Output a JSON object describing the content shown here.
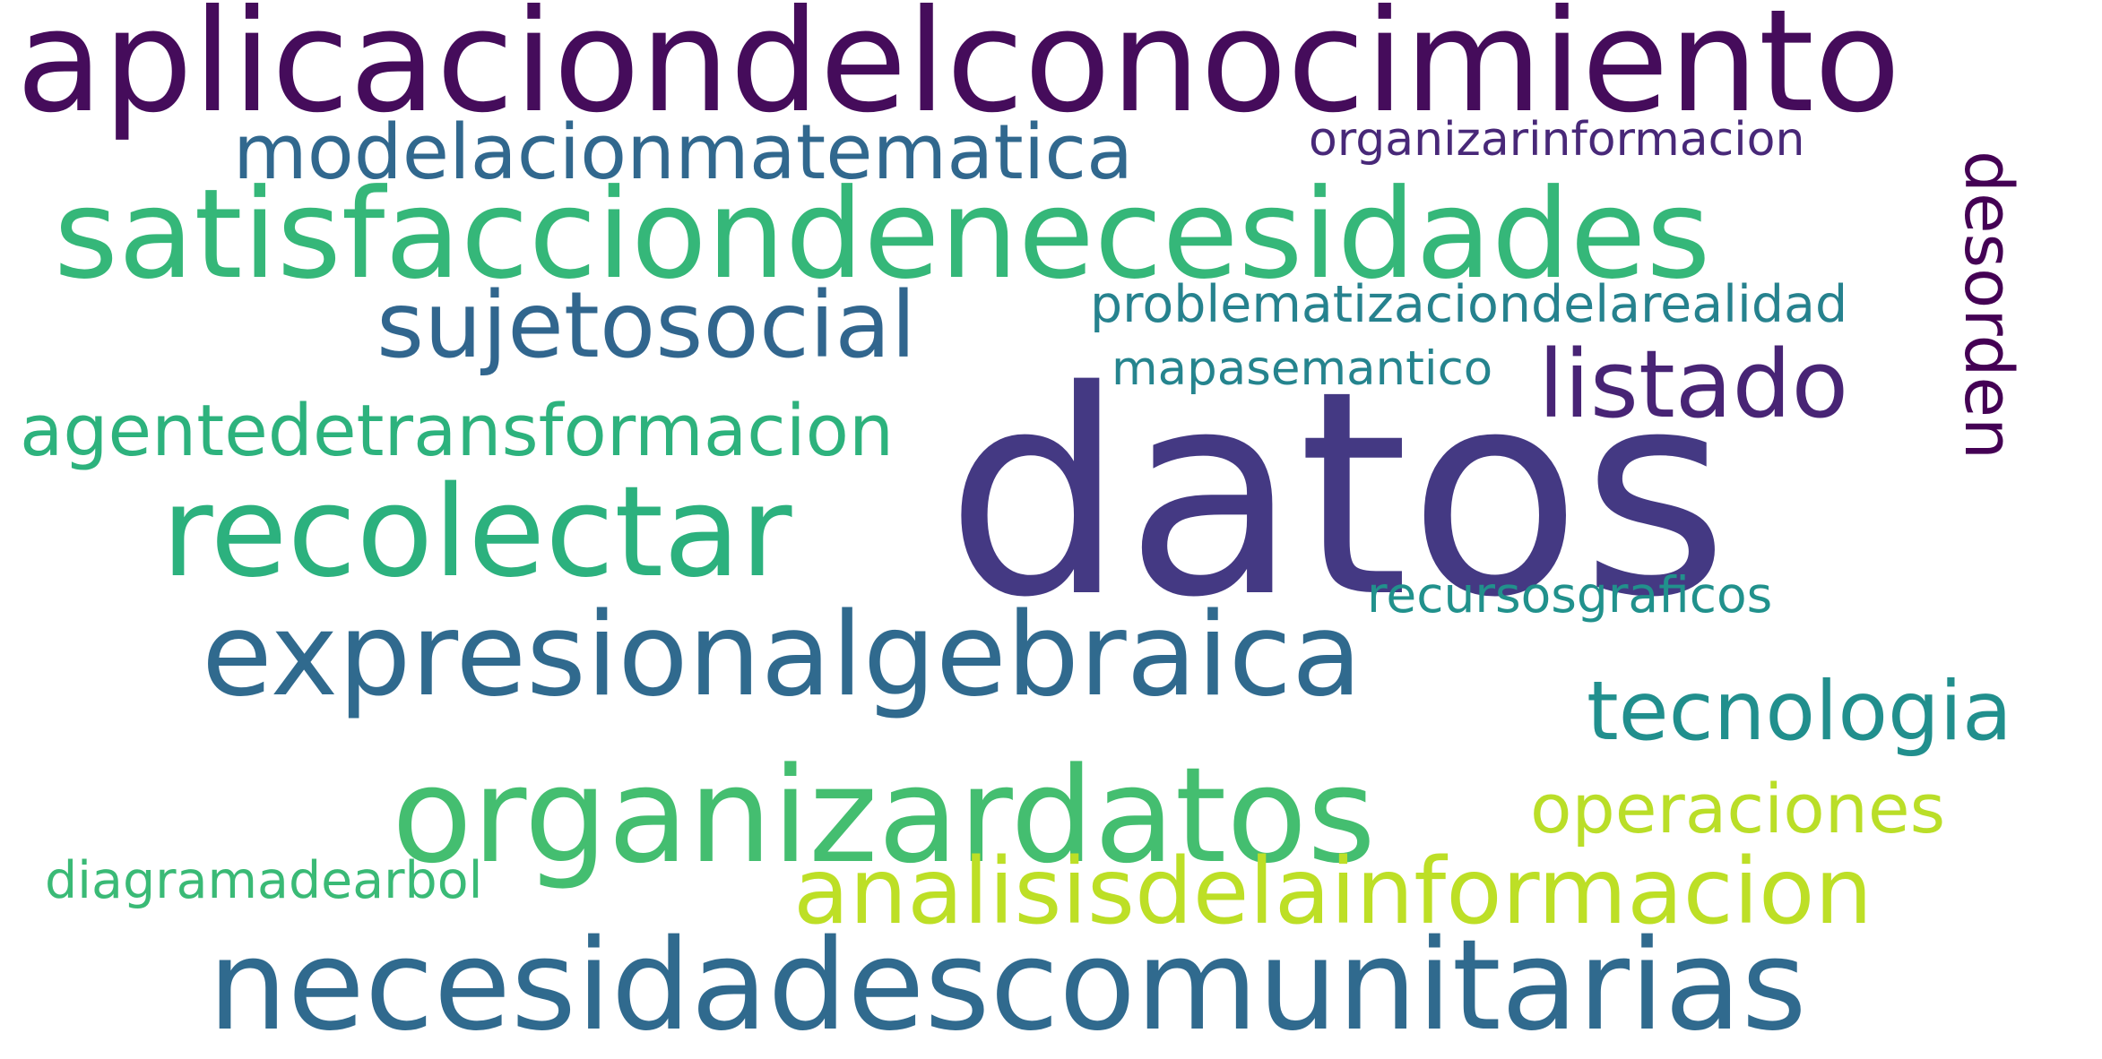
{
  "words": {
    "w0": {
      "text": "datos",
      "color": "#443983"
    },
    "w1": {
      "text": "aplicaciondelconocimiento",
      "color": "#450c5b"
    },
    "w2": {
      "text": "satisfacciondenecesidades",
      "color": "#35b779"
    },
    "w3": {
      "text": "necesidadescomunitarias",
      "color": "#306a8e"
    },
    "w4": {
      "text": "organizardatos",
      "color": "#44be70"
    },
    "w5": {
      "text": "expresionalgebraica",
      "color": "#306a8e"
    },
    "w6": {
      "text": "recolectar",
      "color": "#2cb17e"
    },
    "w7": {
      "text": "analisisdelainformacion",
      "color": "#bddf26"
    },
    "w8": {
      "text": "sujetosocial",
      "color": "#31668e"
    },
    "w9": {
      "text": "modelacionmatematica",
      "color": "#31688e"
    },
    "w10": {
      "text": "listado",
      "color": "#482475"
    },
    "w11": {
      "text": "tecnologia",
      "color": "#218f8d"
    },
    "w12": {
      "text": "agentedetransformacion",
      "color": "#2db27d"
    },
    "w13": {
      "text": "desorden",
      "color": "#440154"
    },
    "w14": {
      "text": "operaciones",
      "color": "#bade28"
    },
    "w15": {
      "text": "organizarinformacion",
      "color": "#482878"
    },
    "w16": {
      "text": "problematizaciondelarealidad",
      "color": "#26828e"
    },
    "w17": {
      "text": "mapasemantico",
      "color": "#25848e"
    },
    "w18": {
      "text": "recursosgraficos",
      "color": "#21918c"
    },
    "w19": {
      "text": "diagramadearbol",
      "color": "#3aba76"
    }
  }
}
